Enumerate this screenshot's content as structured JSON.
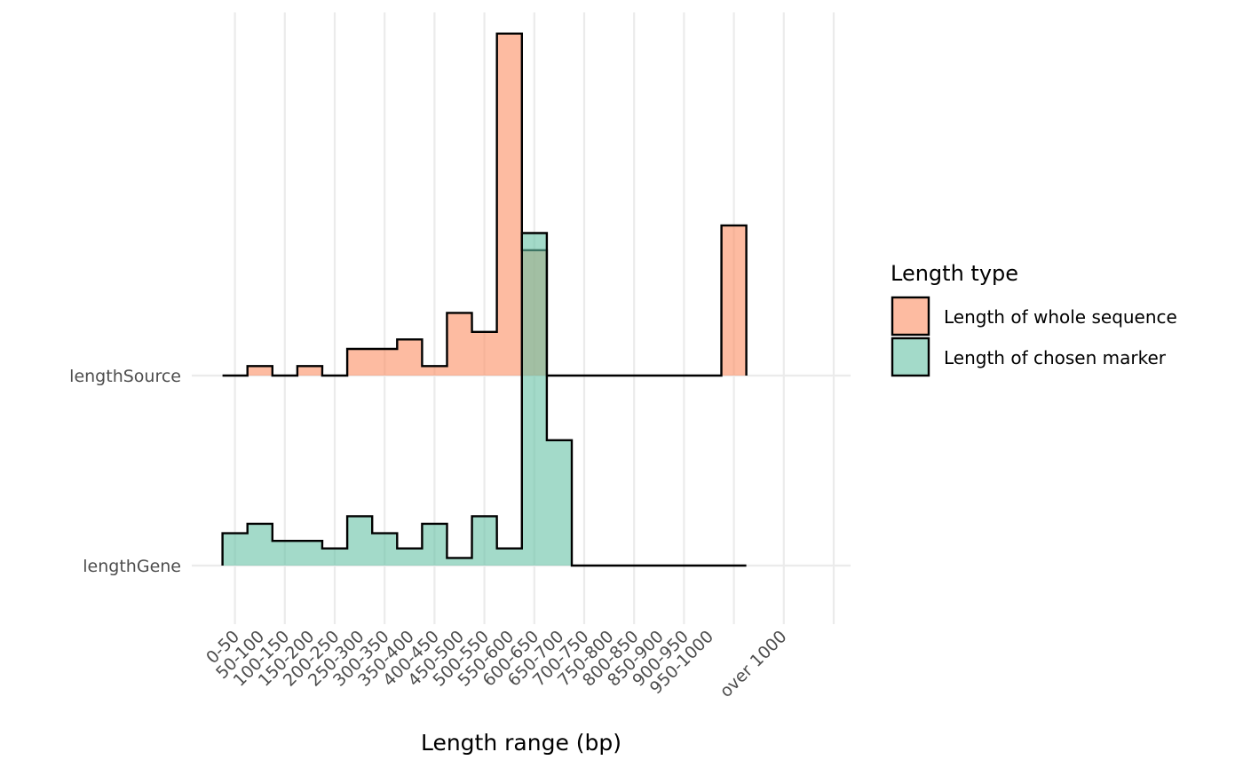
{
  "chart_data": {
    "type": "ridgeline-histogram",
    "categories": [
      "0-50",
      "50-100",
      "100-150",
      "150-200",
      "200-250",
      "250-300",
      "300-350",
      "350-400",
      "400-450",
      "450-500",
      "500-550",
      "550-600",
      "600-650",
      "650-700",
      "700-750",
      "750-800",
      "800-850",
      "850-900",
      "900-950",
      "950-1000",
      "over 1000"
    ],
    "y_categories": [
      "lengthGene",
      "lengthSource"
    ],
    "series": [
      {
        "name": "Length of whole sequence",
        "row": "lengthSource",
        "color": "#fc8d62",
        "values": [
          0,
          0.05,
          0,
          0.05,
          0,
          0.14,
          0.14,
          0.19,
          0.05,
          0.33,
          0.23,
          1.8,
          0.66,
          0,
          0,
          0,
          0,
          0,
          0,
          0,
          0.79
        ]
      },
      {
        "name": "Length of chosen marker",
        "row": "lengthGene",
        "color": "#66c2a5",
        "values": [
          0.17,
          0.22,
          0.13,
          0.13,
          0.09,
          0.26,
          0.17,
          0.09,
          0.22,
          0.04,
          0.26,
          0.09,
          1.75,
          0.66,
          0,
          0,
          0,
          0,
          0,
          0,
          0
        ]
      }
    ],
    "xlabel": "Length range (bp)",
    "ylabel": "",
    "legend": {
      "title": "Length type",
      "position": "right",
      "entries": [
        "Length of whole sequence",
        "Length of chosen marker"
      ]
    },
    "grid": true
  }
}
